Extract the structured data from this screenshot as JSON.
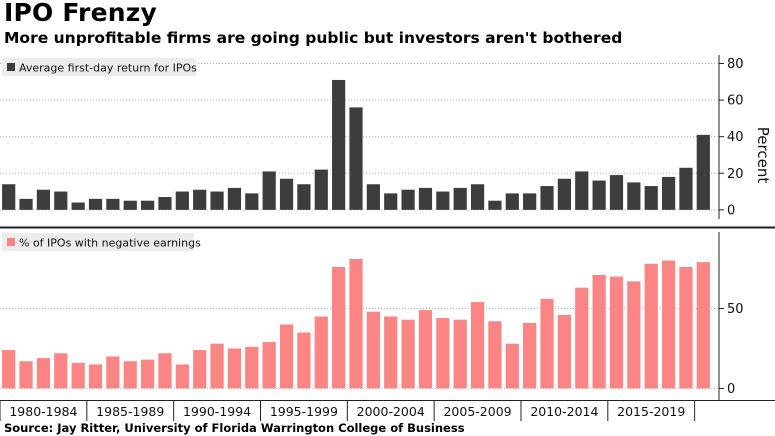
{
  "header": {
    "title": "IPO Frenzy",
    "subtitle": "More unprofitable firms are going public but investors aren't bothered"
  },
  "footer": {
    "source": "Source: Jay Ritter, University of Florida Warrington College of Business"
  },
  "colors": {
    "top_series": "#3d3d3d",
    "bottom_series": "#fb8484",
    "grid": "#b7b7b7",
    "divider": "#222222"
  },
  "chart_data": [
    {
      "type": "bar",
      "x": [
        1980,
        1981,
        1982,
        1983,
        1984,
        1985,
        1986,
        1987,
        1988,
        1989,
        1990,
        1991,
        1992,
        1993,
        1994,
        1995,
        1996,
        1997,
        1998,
        1999,
        2000,
        2001,
        2002,
        2003,
        2004,
        2005,
        2006,
        2007,
        2008,
        2009,
        2010,
        2011,
        2012,
        2013,
        2014,
        2015,
        2016,
        2017,
        2018,
        2019,
        2020
      ],
      "series": [
        {
          "name": "Average first-day return for IPOs",
          "values": [
            14,
            6,
            11,
            10,
            4,
            6,
            6,
            5,
            5,
            7,
            10,
            11,
            10,
            12,
            9,
            21,
            17,
            14,
            22,
            71,
            56,
            14,
            9,
            11,
            12,
            10,
            12,
            14,
            5,
            9,
            9,
            13,
            17,
            21,
            16,
            19,
            15,
            13,
            18,
            23,
            41
          ]
        }
      ],
      "ylim": [
        -5,
        83
      ],
      "yticks": [
        0,
        20,
        40,
        60,
        80
      ],
      "ylabel": "Percent",
      "legend_position": "top-left",
      "grid": true
    },
    {
      "type": "bar",
      "x": [
        1980,
        1981,
        1982,
        1983,
        1984,
        1985,
        1986,
        1987,
        1988,
        1989,
        1990,
        1991,
        1992,
        1993,
        1994,
        1995,
        1996,
        1997,
        1998,
        1999,
        2000,
        2001,
        2002,
        2003,
        2004,
        2005,
        2006,
        2007,
        2008,
        2009,
        2010,
        2011,
        2012,
        2013,
        2014,
        2015,
        2016,
        2017,
        2018,
        2019,
        2020
      ],
      "series": [
        {
          "name": "% of IPOs with negative earnings",
          "values": [
            24,
            17,
            19,
            22,
            16,
            15,
            20,
            17,
            18,
            22,
            15,
            24,
            28,
            25,
            26,
            29,
            40,
            35,
            45,
            76,
            81,
            48,
            45,
            43,
            49,
            44,
            43,
            54,
            42,
            28,
            41,
            56,
            46,
            63,
            71,
            70,
            67,
            78,
            80,
            76,
            79
          ]
        }
      ],
      "ylim": [
        -6,
        96
      ],
      "yticks": [
        0,
        50
      ],
      "categories": [
        "1980-1984",
        "1985-1989",
        "1990-1994",
        "1995-1999",
        "2000-2004",
        "2005-2009",
        "2010-2014",
        "2015-2019"
      ],
      "legend_position": "top-left",
      "grid": true
    }
  ]
}
